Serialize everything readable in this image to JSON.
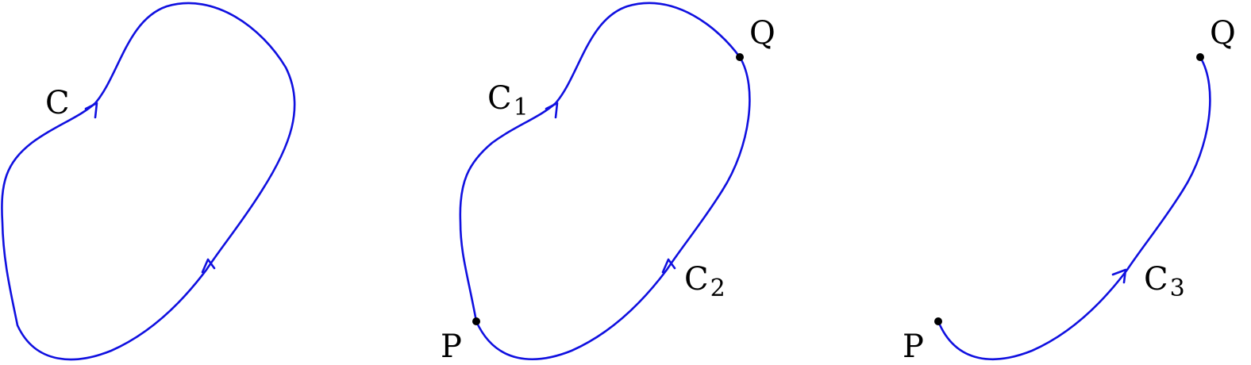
{
  "colors": {
    "curve": "#1010e0",
    "point": "#000000",
    "text": "#000000"
  },
  "panel1": {
    "curve_label": "C"
  },
  "panel2": {
    "curve1_label": "C",
    "curve1_sub": "1",
    "curve2_label": "C",
    "curve2_sub": "2",
    "point_p": "P",
    "point_q": "Q"
  },
  "panel3": {
    "curve3_label": "C",
    "curve3_sub": "3",
    "point_p": "P",
    "point_q": "Q"
  }
}
